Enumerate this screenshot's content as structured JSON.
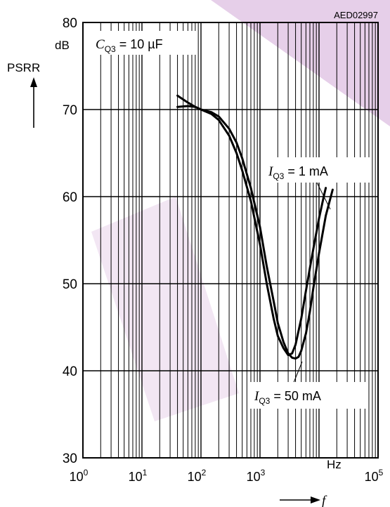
{
  "chart_data": {
    "type": "line",
    "code": "AED02997",
    "ylabel": "PSRR",
    "yunit": "dB",
    "xlabel": "f",
    "xunit": "Hz",
    "x_scale": "log",
    "xlim": [
      1,
      100000
    ],
    "ylim": [
      30,
      80
    ],
    "grid": true,
    "x_ticks": [
      {
        "base": "10",
        "exp": "0",
        "value": 1
      },
      {
        "base": "10",
        "exp": "1",
        "value": 10
      },
      {
        "base": "10",
        "exp": "2",
        "value": 100
      },
      {
        "base": "10",
        "exp": "3",
        "value": 1000
      },
      {
        "base": "10",
        "exp": "5",
        "value": 100000
      }
    ],
    "y_ticks": [
      "30",
      "40",
      "50",
      "60",
      "70",
      "80"
    ],
    "condition": {
      "symbol": "C",
      "sub": "Q3",
      "text": "= 10 µF"
    },
    "series": [
      {
        "name": "1 mA",
        "label": {
          "symbol": "I",
          "sub": "Q3",
          "text": "= 1 mA"
        },
        "x": [
          40,
          60,
          80,
          100,
          150,
          200,
          300,
          400,
          500,
          700,
          1000,
          1300,
          1700,
          2000,
          2500,
          3000,
          3500,
          4000,
          4500,
          5000,
          6000,
          7000,
          8000,
          10000,
          13000,
          17000
        ],
        "y": [
          71.6,
          70.8,
          70.3,
          70.0,
          69.7,
          69.2,
          67.8,
          66.2,
          64.4,
          61.0,
          56.5,
          52.0,
          48.0,
          45.5,
          43.3,
          42.0,
          41.5,
          41.4,
          41.6,
          42.3,
          44.3,
          46.8,
          49.5,
          53.5,
          57.8,
          60.8
        ]
      },
      {
        "name": "50 mA",
        "label": {
          "symbol": "I",
          "sub": "Q3",
          "text": "= 50 mA"
        },
        "x": [
          40,
          60,
          80,
          100,
          150,
          200,
          300,
          400,
          500,
          700,
          1000,
          1300,
          1700,
          2000,
          2500,
          3000,
          3500,
          4000,
          5000,
          6000,
          7000,
          8000,
          10000,
          12000,
          13000
        ],
        "y": [
          70.3,
          70.4,
          70.3,
          70.0,
          69.5,
          68.8,
          67.0,
          65.0,
          63.0,
          59.5,
          54.5,
          50.0,
          46.0,
          44.0,
          42.6,
          41.8,
          42.0,
          43.0,
          46.0,
          49.2,
          51.8,
          54.0,
          57.5,
          60.0,
          61.0
        ]
      }
    ]
  }
}
